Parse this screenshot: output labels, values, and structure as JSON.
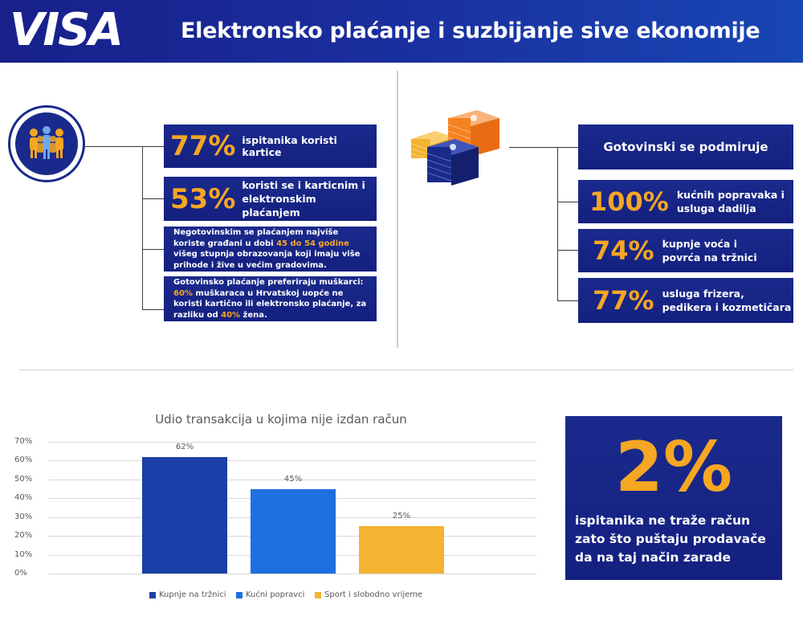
{
  "header": {
    "logo": "VISA",
    "title": "Elektronsko plaćanje i suzbijanje sive ekonomije"
  },
  "left": {
    "stat1": {
      "value": "77%",
      "text": "ispitanika koristi kartice"
    },
    "stat2": {
      "value": "53%",
      "text_line1": "koristi se i karticnim i",
      "text_line2": "elektronskim plaćanjem"
    },
    "note1": {
      "a": "Negotovinskim se plaćanjem najviše koriste građani u dobi",
      "hl": "45 do 54 godine",
      "b": "višeg stupnja obrazovanja koji imaju više prihode i žive u većim gradovima."
    },
    "note2": {
      "a": "Gotovinsko plaćanje preferiraju muškarci:",
      "hl1": "60%",
      "b": "muškaraca u Hrvatskoj uopće ne koristi kartično ili elektronsko plaćanje, za razliku od",
      "hl2": "40%",
      "c": "žena."
    }
  },
  "right": {
    "header": "Gotovinski se podmiruje",
    "items": [
      {
        "value": "100%",
        "line1": "kućnih popravaka i",
        "line2": "usluga dadilja"
      },
      {
        "value": "74%",
        "line1": "kupnje voća i",
        "line2": "povrća na tržnici"
      },
      {
        "value": "77%",
        "line1": "usluga frizera,",
        "line2": "pedikera i kozmetičara"
      }
    ]
  },
  "callout": {
    "value": "2%",
    "text": "ispitanika ne traže račun zato što puštaju prodavače da na taj način zarade"
  },
  "colors": {
    "navy": "#1a2a8c",
    "orange": "#f5a623",
    "bar1": "#1a3fa8",
    "bar2": "#1f6fe0",
    "bar3": "#f2b431"
  },
  "chart_data": {
    "type": "bar",
    "title": "Udio transakcija u kojima nije izdan račun",
    "categories": [
      "Kupnje na tržnici",
      "Kućni popravci",
      "Sport i slobodno vrijeme"
    ],
    "values": [
      62,
      45,
      25
    ],
    "value_labels": [
      "62%",
      "45%",
      "25%"
    ],
    "yticks": [
      "0%",
      "10%",
      "20%",
      "30%",
      "40%",
      "50%",
      "60%",
      "70%"
    ],
    "ylim": [
      0,
      70
    ],
    "grid": true,
    "legend": "bottom"
  }
}
